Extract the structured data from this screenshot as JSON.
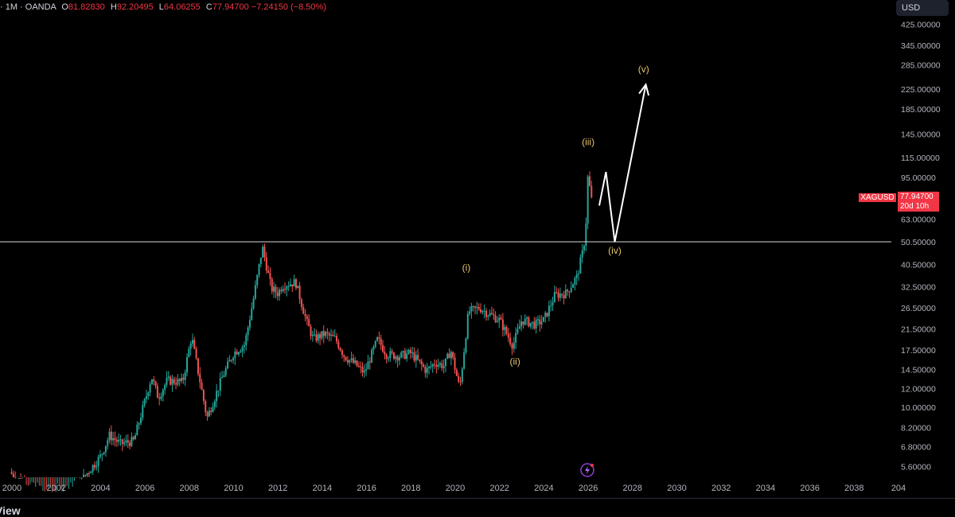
{
  "legend": {
    "prefix": "· 1M · OANDA",
    "o_label": "O",
    "o": "81.82830",
    "h_label": "H",
    "h": "92.20495",
    "l_label": "L",
    "l": "64.06255",
    "c_label": "C",
    "c": "77.94700",
    "change": "−7.24150 (−8.50%)"
  },
  "currency": "USD",
  "price_tag": {
    "symbol": "XAGUSD",
    "price": "77.94700",
    "countdown": "20d 10h"
  },
  "brand": "View",
  "colors": {
    "up": "#26a69a",
    "down": "#ef5350",
    "wave_label": "#e7c46d",
    "projection": "#ffffff",
    "price_tag": "#f23645"
  },
  "chart_data": {
    "type": "candlestick",
    "title": "",
    "symbol": "XAGUSD",
    "interval": "1M",
    "scale": "log",
    "x_ticks": [
      "2000",
      "2002",
      "2004",
      "2006",
      "2008",
      "2010",
      "2012",
      "2014",
      "2016",
      "2018",
      "2020",
      "2022",
      "2024",
      "2026",
      "2028",
      "2030",
      "2032",
      "2034",
      "2036",
      "2038",
      "204"
    ],
    "y_ticks": [
      "425.00000",
      "345.00000",
      "285.00000",
      "225.00000",
      "185.00000",
      "145.00000",
      "115.00000",
      "95.00000",
      "63.00000",
      "50.50000",
      "40.50000",
      "32.50000",
      "26.50000",
      "21.50000",
      "17.50000",
      "14.50000",
      "12.00000",
      "10.00000",
      "8.20000",
      "6.80000",
      "5.60000"
    ],
    "price_path": [
      [
        1999.9,
        5.3
      ],
      [
        2001.0,
        4.4
      ],
      [
        2001.9,
        4.2
      ],
      [
        2003.0,
        4.7
      ],
      [
        2004.0,
        6.2
      ],
      [
        2004.4,
        7.6
      ],
      [
        2004.9,
        7.0
      ],
      [
        2005.5,
        7.2
      ],
      [
        2006.3,
        13.5
      ],
      [
        2006.6,
        11.0
      ],
      [
        2007.0,
        13.0
      ],
      [
        2007.7,
        12.8
      ],
      [
        2008.1,
        20.0
      ],
      [
        2008.8,
        9.0
      ],
      [
        2009.5,
        13.5
      ],
      [
        2010.0,
        17.0
      ],
      [
        2010.5,
        18.5
      ],
      [
        2010.9,
        29.0
      ],
      [
        2011.3,
        48.0
      ],
      [
        2011.7,
        32.0
      ],
      [
        2012.0,
        30.5
      ],
      [
        2012.2,
        33.0
      ],
      [
        2012.8,
        34.0
      ],
      [
        2013.3,
        23.0
      ],
      [
        2013.6,
        19.5
      ],
      [
        2014.1,
        20.5
      ],
      [
        2014.6,
        19.5
      ],
      [
        2015.0,
        16.5
      ],
      [
        2015.5,
        15.2
      ],
      [
        2015.9,
        14.0
      ],
      [
        2016.5,
        19.5
      ],
      [
        2016.9,
        16.8
      ],
      [
        2017.5,
        16.5
      ],
      [
        2018.0,
        17.0
      ],
      [
        2018.7,
        14.3
      ],
      [
        2019.1,
        15.5
      ],
      [
        2019.5,
        15.0
      ],
      [
        2019.8,
        17.5
      ],
      [
        2020.2,
        12.0
      ],
      [
        2020.6,
        25.5
      ],
      [
        2021.1,
        26.5
      ],
      [
        2021.5,
        25.0
      ],
      [
        2022.0,
        23.5
      ],
      [
        2022.6,
        18.3
      ],
      [
        2023.0,
        23.5
      ],
      [
        2023.6,
        22.5
      ],
      [
        2024.0,
        23.5
      ],
      [
        2024.5,
        30.0
      ],
      [
        2025.0,
        30.5
      ],
      [
        2025.5,
        36.0
      ],
      [
        2025.8,
        48.0
      ],
      [
        2025.95,
        70.0
      ],
      [
        2026.0,
        110.0
      ],
      [
        2026.08,
        81.8
      ],
      [
        2026.15,
        77.9
      ]
    ],
    "horizontal_line": {
      "value": 50.5
    },
    "wave_labels": [
      {
        "text": "(i)",
        "x": 2020.5,
        "y": 38.0
      },
      {
        "text": "(ii)",
        "x": 2022.7,
        "y": 15.2
      },
      {
        "text": "(iii)",
        "x": 2026.0,
        "y": 130.0
      },
      {
        "text": "(iv)",
        "x": 2027.2,
        "y": 45.0
      },
      {
        "text": "(v)",
        "x": 2028.5,
        "y": 265.0
      }
    ],
    "projection_path": [
      [
        2026.5,
        72.0
      ],
      [
        2026.8,
        100.0
      ],
      [
        2027.2,
        50.5
      ],
      [
        2028.6,
        235.0
      ]
    ]
  }
}
